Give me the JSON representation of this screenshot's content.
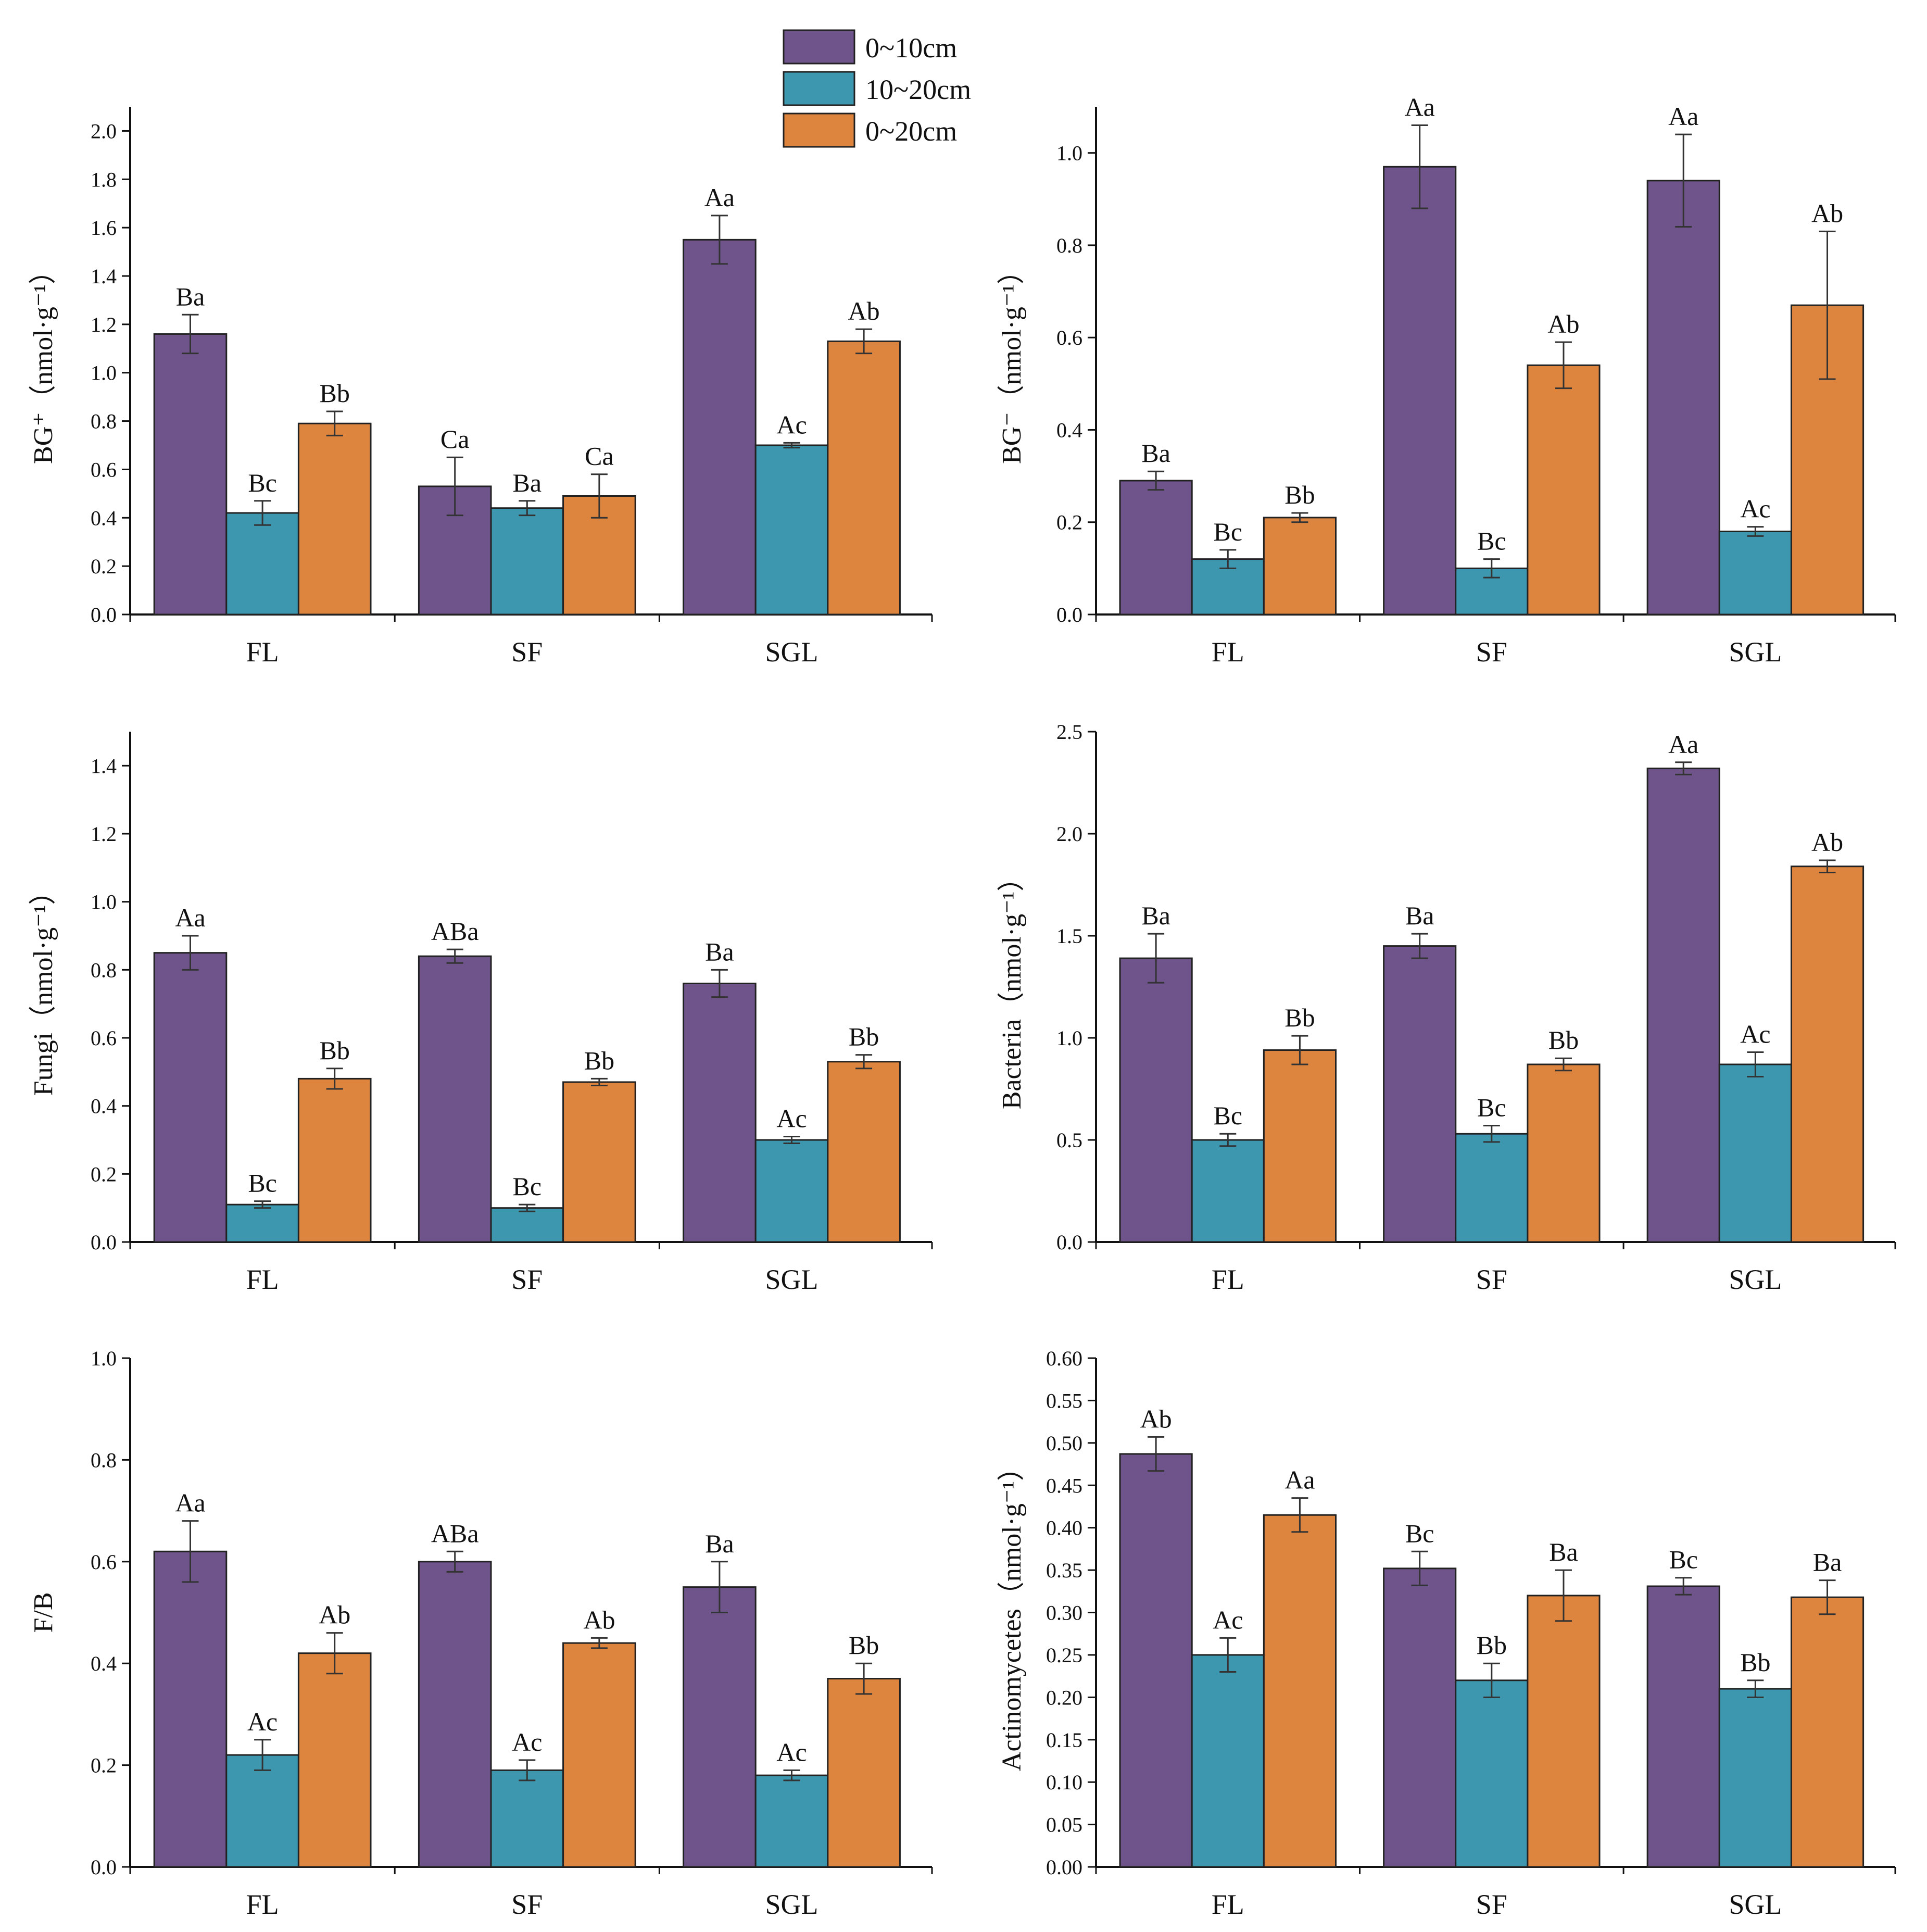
{
  "legend": {
    "items": [
      {
        "label": "0~10cm",
        "color": "#6e548b"
      },
      {
        "label": "10~20cm",
        "color": "#3d97ae"
      },
      {
        "label": "0~20cm",
        "color": "#dd853e"
      }
    ]
  },
  "chart_data": [
    {
      "type": "bar",
      "ylabel": "BG⁺（nmol·g⁻¹）",
      "ylim": [
        0,
        2.1
      ],
      "yticks": [
        "0.0",
        "0.2",
        "0.4",
        "0.6",
        "0.8",
        "1.0",
        "1.2",
        "1.4",
        "1.6",
        "1.8",
        "2.0"
      ],
      "categories": [
        "FL",
        "SF",
        "SGL"
      ],
      "series": [
        {
          "name": "0~10cm",
          "values": [
            1.16,
            0.53,
            1.55
          ],
          "errors": [
            0.08,
            0.12,
            0.1
          ],
          "labels": [
            "Ba",
            "Ca",
            "Aa"
          ]
        },
        {
          "name": "10~20cm",
          "values": [
            0.42,
            0.44,
            0.7
          ],
          "errors": [
            0.05,
            0.03,
            0.01
          ],
          "labels": [
            "Bc",
            "Ba",
            "Ac"
          ]
        },
        {
          "name": "0~20cm",
          "values": [
            0.79,
            0.49,
            1.13
          ],
          "errors": [
            0.05,
            0.09,
            0.05
          ],
          "labels": [
            "Bb",
            "Ca",
            "Ab"
          ]
        }
      ]
    },
    {
      "type": "bar",
      "ylabel": "BG⁻（nmol·g⁻¹）",
      "ylim": [
        0,
        1.1
      ],
      "yticks": [
        "0.0",
        "0.2",
        "0.4",
        "0.6",
        "0.8",
        "1.0"
      ],
      "categories": [
        "FL",
        "SF",
        "SGL"
      ],
      "series": [
        {
          "name": "0~10cm",
          "values": [
            0.29,
            0.97,
            0.94
          ],
          "errors": [
            0.02,
            0.09,
            0.1
          ],
          "labels": [
            "Ba",
            "Aa",
            "Aa"
          ]
        },
        {
          "name": "10~20cm",
          "values": [
            0.12,
            0.1,
            0.18
          ],
          "errors": [
            0.02,
            0.02,
            0.01
          ],
          "labels": [
            "Bc",
            "Bc",
            "Ac"
          ]
        },
        {
          "name": "0~20cm",
          "values": [
            0.21,
            0.54,
            0.67
          ],
          "errors": [
            0.01,
            0.05,
            0.16
          ],
          "labels": [
            "Bb",
            "Ab",
            "Ab"
          ]
        }
      ]
    },
    {
      "type": "bar",
      "ylabel": "Fungi（nmol·g⁻¹）",
      "ylim": [
        0,
        1.5
      ],
      "yticks": [
        "0.0",
        "0.2",
        "0.4",
        "0.6",
        "0.8",
        "1.0",
        "1.2",
        "1.4"
      ],
      "categories": [
        "FL",
        "SF",
        "SGL"
      ],
      "series": [
        {
          "name": "0~10cm",
          "values": [
            0.85,
            0.84,
            0.76
          ],
          "errors": [
            0.05,
            0.02,
            0.04
          ],
          "labels": [
            "Aa",
            "ABa",
            "Ba"
          ]
        },
        {
          "name": "10~20cm",
          "values": [
            0.11,
            0.1,
            0.3
          ],
          "errors": [
            0.01,
            0.01,
            0.01
          ],
          "labels": [
            "Bc",
            "Bc",
            "Ac"
          ]
        },
        {
          "name": "0~20cm",
          "values": [
            0.48,
            0.47,
            0.53
          ],
          "errors": [
            0.03,
            0.01,
            0.02
          ],
          "labels": [
            "Bb",
            "Bb",
            "Bb"
          ]
        }
      ]
    },
    {
      "type": "bar",
      "ylabel": "Bacteria（nmol·g⁻¹）",
      "ylim": [
        0,
        2.5
      ],
      "yticks": [
        "0.0",
        "0.5",
        "1.0",
        "1.5",
        "2.0",
        "2.5"
      ],
      "categories": [
        "FL",
        "SF",
        "SGL"
      ],
      "series": [
        {
          "name": "0~10cm",
          "values": [
            1.39,
            1.45,
            2.32
          ],
          "errors": [
            0.12,
            0.06,
            0.03
          ],
          "labels": [
            "Ba",
            "Ba",
            "Aa"
          ]
        },
        {
          "name": "10~20cm",
          "values": [
            0.5,
            0.53,
            0.87
          ],
          "errors": [
            0.03,
            0.04,
            0.06
          ],
          "labels": [
            "Bc",
            "Bc",
            "Ac"
          ]
        },
        {
          "name": "0~20cm",
          "values": [
            0.94,
            0.87,
            1.84
          ],
          "errors": [
            0.07,
            0.03,
            0.03
          ],
          "labels": [
            "Bb",
            "Bb",
            "Ab"
          ]
        }
      ]
    },
    {
      "type": "bar",
      "ylabel": "F/B",
      "ylim": [
        0,
        1.0
      ],
      "yticks": [
        "0.0",
        "0.2",
        "0.4",
        "0.6",
        "0.8",
        "1.0"
      ],
      "categories": [
        "FL",
        "SF",
        "SGL"
      ],
      "series": [
        {
          "name": "0~10cm",
          "values": [
            0.62,
            0.6,
            0.55
          ],
          "errors": [
            0.06,
            0.02,
            0.05
          ],
          "labels": [
            "Aa",
            "ABa",
            "Ba"
          ]
        },
        {
          "name": "10~20cm",
          "values": [
            0.22,
            0.19,
            0.18
          ],
          "errors": [
            0.03,
            0.02,
            0.01
          ],
          "labels": [
            "Ac",
            "Ac",
            "Ac"
          ]
        },
        {
          "name": "0~20cm",
          "values": [
            0.42,
            0.44,
            0.37
          ],
          "errors": [
            0.04,
            0.01,
            0.03
          ],
          "labels": [
            "Ab",
            "Ab",
            "Bb"
          ]
        }
      ]
    },
    {
      "type": "bar",
      "ylabel": "Actinomycetes（nmol·g⁻¹）",
      "ylim": [
        0,
        0.6
      ],
      "yticks": [
        "0.00",
        "0.05",
        "0.10",
        "0.15",
        "0.20",
        "0.25",
        "0.30",
        "0.35",
        "0.40",
        "0.45",
        "0.50",
        "0.55",
        "0.60"
      ],
      "categories": [
        "FL",
        "SF",
        "SGL"
      ],
      "series": [
        {
          "name": "0~10cm",
          "values": [
            0.487,
            0.352,
            0.331
          ],
          "errors": [
            0.02,
            0.02,
            0.01
          ],
          "labels": [
            "Ab",
            "Bc",
            "Bc"
          ]
        },
        {
          "name": "10~20cm",
          "values": [
            0.25,
            0.22,
            0.21
          ],
          "errors": [
            0.02,
            0.02,
            0.01
          ],
          "labels": [
            "Ac",
            "Bb",
            "Bb"
          ]
        },
        {
          "name": "0~20cm",
          "values": [
            0.415,
            0.32,
            0.318
          ],
          "errors": [
            0.02,
            0.03,
            0.02
          ],
          "labels": [
            "Aa",
            "Ba",
            "Ba"
          ]
        }
      ]
    }
  ]
}
